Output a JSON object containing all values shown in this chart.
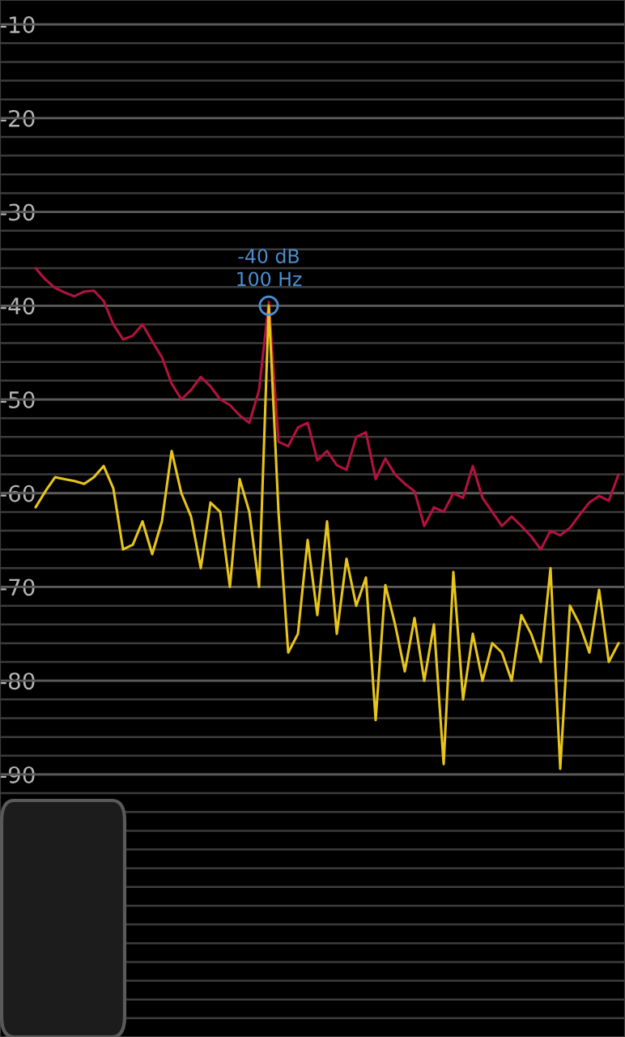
{
  "chart_data": {
    "type": "line",
    "categories": [
      null,
      null,
      null,
      null,
      null,
      null,
      null,
      null,
      null,
      null,
      null,
      null,
      null,
      null,
      null,
      null,
      null,
      null,
      null,
      null,
      null,
      null,
      null,
      null,
      null,
      null,
      null,
      null,
      null,
      null,
      null,
      null,
      null,
      null,
      null,
      null,
      null,
      null,
      null,
      null,
      null,
      null,
      null,
      null,
      null,
      null,
      null,
      null,
      null,
      null,
      null,
      null,
      null,
      null,
      null,
      null,
      null,
      null,
      null,
      null,
      null
    ],
    "series": [
      {
        "color": "#b3123f",
        "values": [
          -36.0,
          -37.2,
          -38.1,
          -38.6,
          -39.0,
          -38.5,
          -38.4,
          -39.5,
          -42.0,
          -43.6,
          -43.2,
          -42.0,
          -43.8,
          -45.5,
          -48.3,
          -50.0,
          -49.0,
          -47.6,
          -48.6,
          -50.0,
          -50.6,
          -51.7,
          -52.5,
          -49.0,
          -39.6,
          -54.5,
          -55.0,
          -53.0,
          -52.5,
          -56.5,
          -55.5,
          -57.0,
          -57.5,
          -54.0,
          -53.5,
          -58.5,
          -56.3,
          -58.0,
          -59.0,
          -59.8,
          -63.5,
          -61.5,
          -62.0,
          -60.0,
          -60.5,
          -57.1,
          -60.5,
          -62.0,
          -63.5,
          -62.5,
          -63.5,
          -64.6,
          -66.0,
          -64.0,
          -64.5,
          -63.7,
          -62.3,
          -61.0,
          -60.3,
          -60.8,
          -58.0
        ]
      },
      {
        "color": "#e8c51a",
        "values": [
          -61.5,
          -59.8,
          -58.3,
          -58.5,
          -58.7,
          -59.0,
          -58.3,
          -57.1,
          -59.5,
          -66.0,
          -65.5,
          -63.0,
          -66.5,
          -63.0,
          -55.5,
          -60.0,
          -62.5,
          -68.0,
          -61.0,
          -62.0,
          -70.0,
          -58.5,
          -62.0,
          -70.0,
          -40.0,
          -62.0,
          -77.0,
          -75.0,
          -65.0,
          -73.0,
          -63.0,
          -75.0,
          -67.0,
          -72.0,
          -69.0,
          -84.2,
          -69.8,
          -74.0,
          -79.0,
          -73.3,
          -80.0,
          -74.0,
          -88.9,
          -68.4,
          -82.0,
          -75.0,
          -80.0,
          -76.0,
          -77.0,
          -80.0,
          -73.0,
          -75.0,
          -78.0,
          -68.0,
          -89.4,
          -72.0,
          -74.0,
          -77.0,
          -70.3,
          -78.0,
          -76.0
        ]
      }
    ],
    "ylim": [
      -118,
      -7.4
    ],
    "yticks": [
      -10,
      {
        "value": -12,
        "label": null
      },
      {
        "value": -14,
        "label": null
      },
      {
        "value": -16,
        "label": null
      },
      {
        "value": -18,
        "label": null
      },
      -20,
      {
        "value": -22,
        "label": null
      },
      {
        "value": -24,
        "label": null
      },
      {
        "value": -26,
        "label": null
      },
      {
        "value": -28,
        "label": null
      },
      -30,
      {
        "value": -32,
        "label": null
      },
      {
        "value": -34,
        "label": null
      },
      {
        "value": -36,
        "label": null
      },
      {
        "value": -38,
        "label": null
      },
      -40,
      {
        "value": -42,
        "label": null
      },
      {
        "value": -44,
        "label": null
      },
      {
        "value": -46,
        "label": null
      },
      {
        "value": -48,
        "label": null
      },
      -50,
      {
        "value": -52,
        "label": null
      },
      {
        "value": -54,
        "label": null
      },
      {
        "value": -56,
        "label": null
      },
      {
        "value": -58,
        "label": null
      },
      -60,
      {
        "value": -62,
        "label": null
      },
      {
        "value": -64,
        "label": null
      },
      {
        "value": -66,
        "label": null
      },
      {
        "value": -68,
        "label": null
      },
      -70,
      {
        "value": -72,
        "label": null
      },
      {
        "value": -74,
        "label": null
      },
      {
        "value": -76,
        "label": null
      },
      {
        "value": -78,
        "label": null
      },
      -80,
      {
        "value": -82,
        "label": null
      },
      {
        "value": -84,
        "label": null
      },
      {
        "value": -86,
        "label": null
      },
      {
        "value": -88,
        "label": null
      },
      -90,
      {
        "value": -92,
        "label": null
      },
      {
        "value": -94,
        "label": null
      },
      {
        "value": -96,
        "label": null
      },
      {
        "value": -98,
        "label": null
      },
      {
        "value": -100,
        "label": null
      },
      {
        "value": -102,
        "label": null
      },
      {
        "value": -104,
        "label": null
      },
      {
        "value": -106,
        "label": null
      },
      {
        "value": -108,
        "label": null
      },
      {
        "value": -110,
        "label": null
      },
      {
        "value": -112,
        "label": null
      },
      {
        "value": -114,
        "label": null
      },
      {
        "value": -116,
        "label": null
      }
    ],
    "tick_labels": "y",
    "grid": "y",
    "line_style": "solid",
    "annotations": [
      {
        "text": "-40 dB\n100 Hz",
        "y": -40
      }
    ]
  }
}
